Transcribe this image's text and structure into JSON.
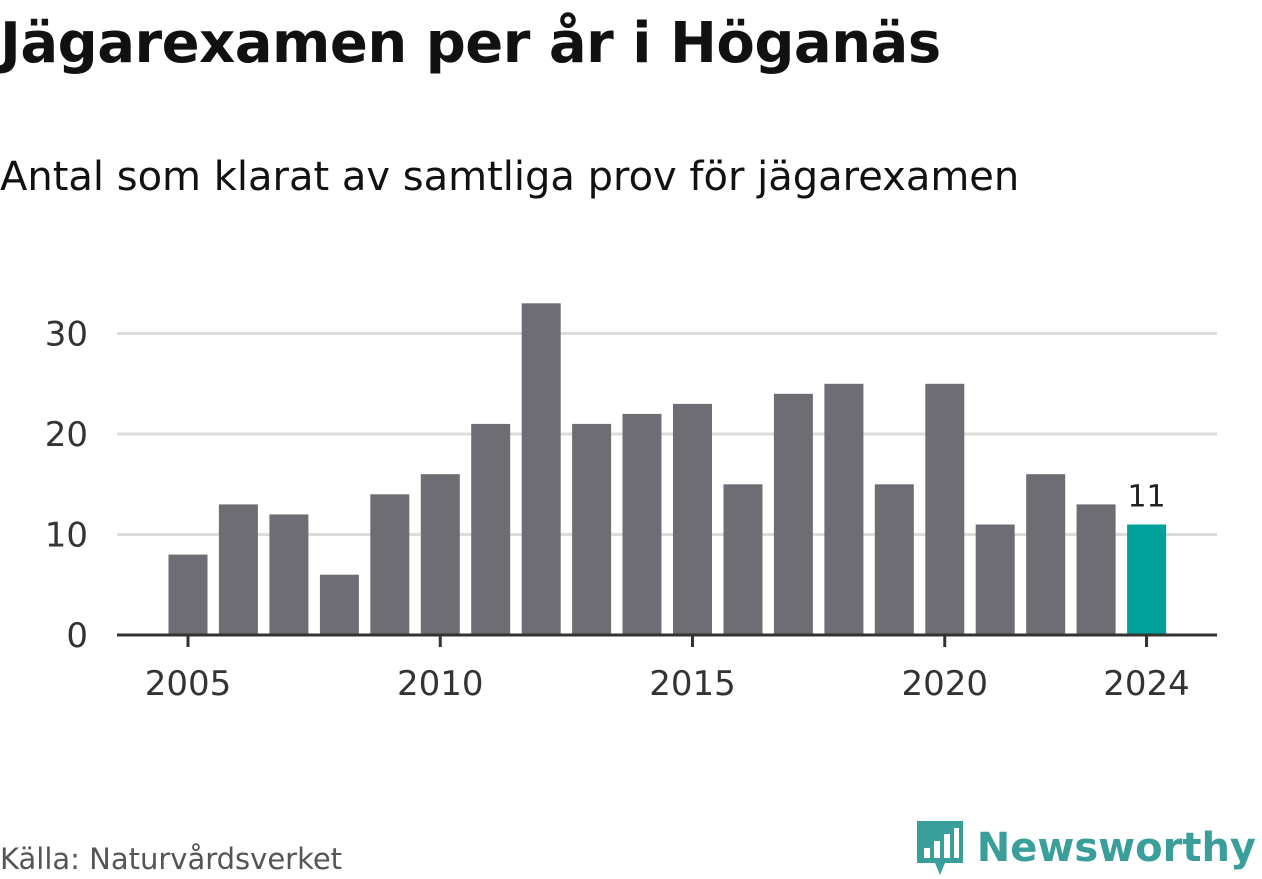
{
  "title": "Jägarexamen per år i Höganäs",
  "subtitle": "Antal som klarat av samtliga prov för jägarexamen",
  "source": "Källa: Naturvårdsverket",
  "brand": {
    "name": "Newsworthy",
    "logo_icon": "newsworthy-bar-chart-icon",
    "color": "#3a9e9a"
  },
  "colors": {
    "bar": "#6e6d73",
    "highlight": "#00a19a",
    "grid": "#dcdcdc",
    "axis": "#333333"
  },
  "chart_data": {
    "type": "bar",
    "categories": [
      2005,
      2006,
      2007,
      2008,
      2009,
      2010,
      2011,
      2012,
      2013,
      2014,
      2015,
      2016,
      2017,
      2018,
      2019,
      2020,
      2021,
      2022,
      2023,
      2024
    ],
    "values": [
      8,
      13,
      12,
      6,
      14,
      16,
      21,
      33,
      21,
      22,
      23,
      15,
      24,
      25,
      15,
      25,
      11,
      16,
      13,
      11
    ],
    "x_ticks": [
      "2005",
      "2010",
      "2015",
      "2020",
      "2024"
    ],
    "y_ticks": [
      0,
      10,
      20,
      30
    ],
    "ylim": [
      0,
      34
    ],
    "grid": true,
    "highlight": {
      "category": 2024,
      "label": "11"
    },
    "xlabel": "",
    "ylabel": ""
  }
}
